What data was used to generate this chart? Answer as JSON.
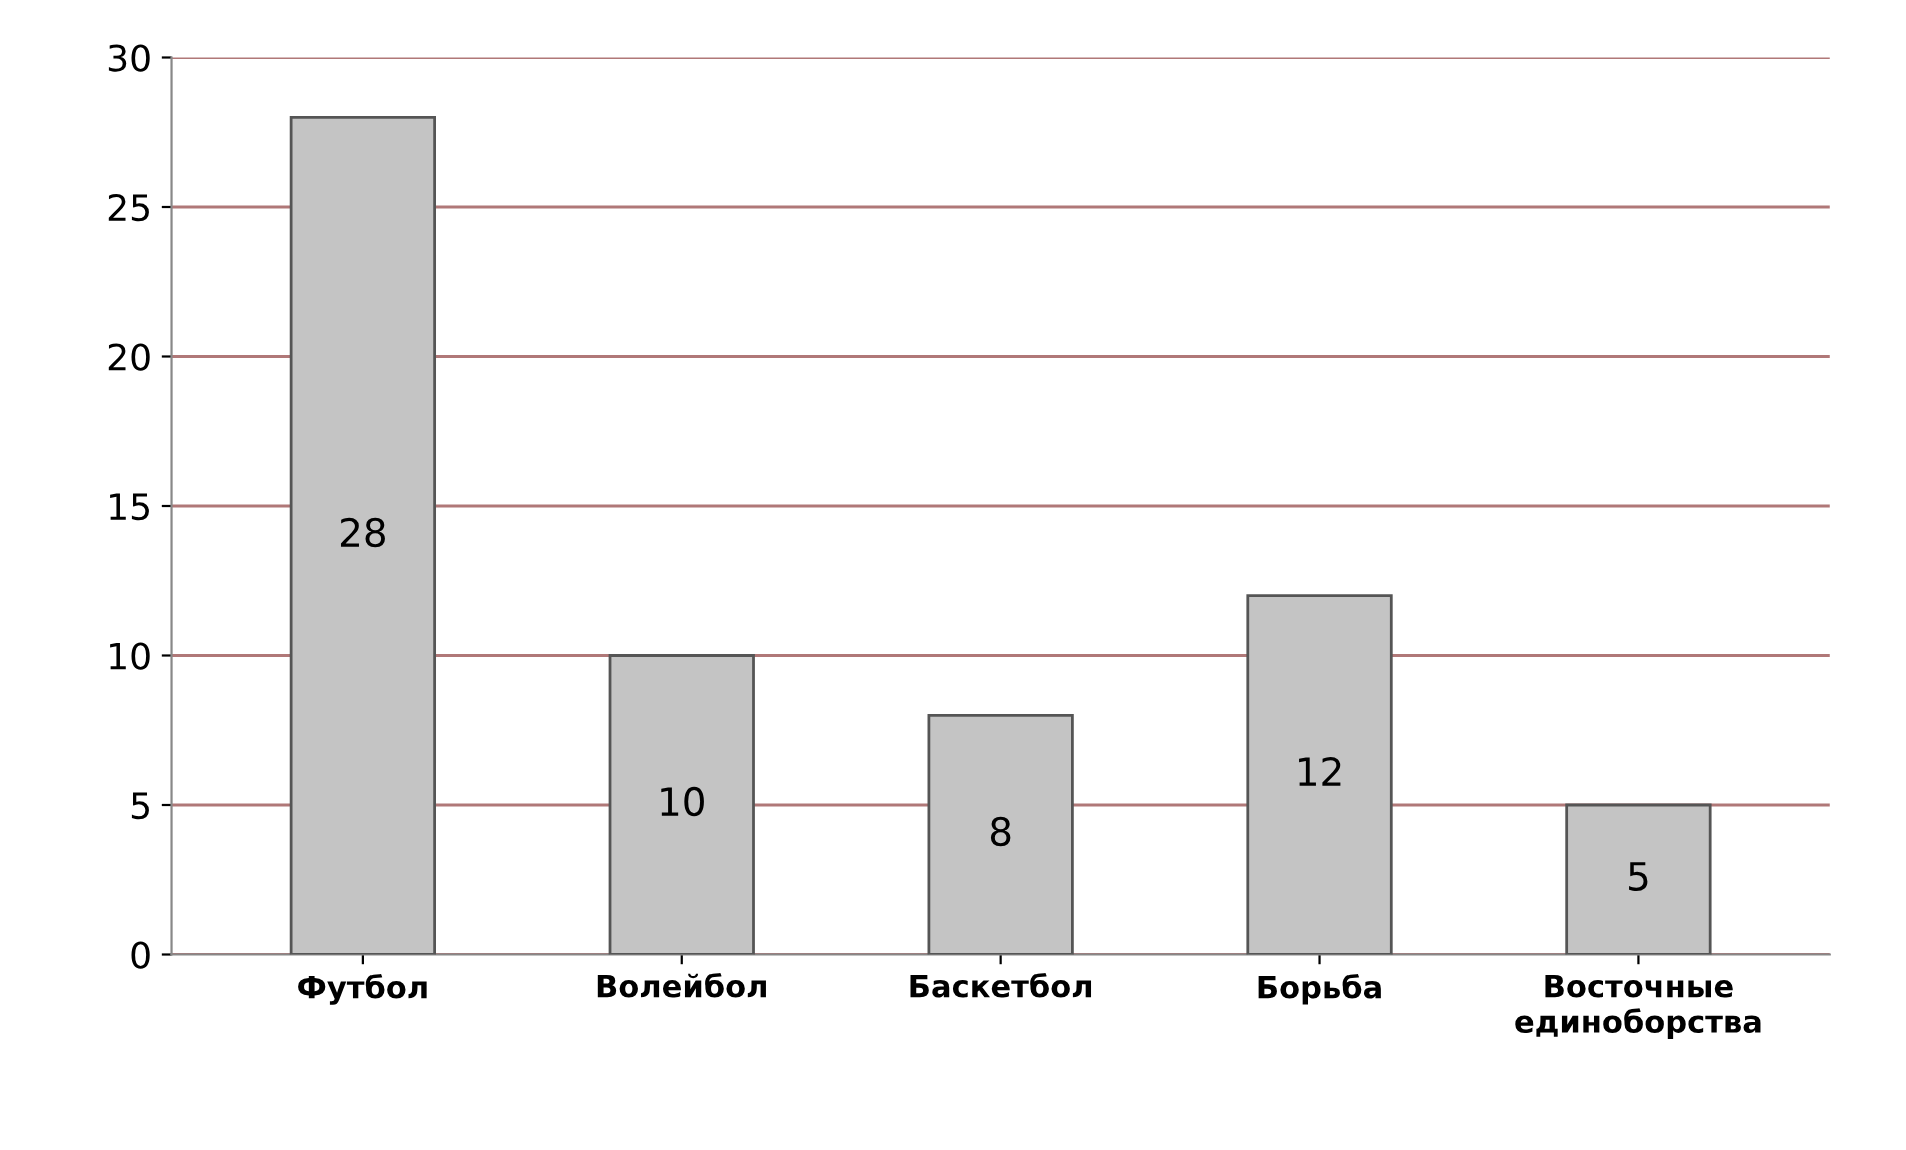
{
  "chart_data": {
    "type": "bar",
    "categories": [
      "Футбол",
      "Волейбол",
      "Баскетбол",
      "Борьба",
      "Восточные\nединоборства"
    ],
    "values": [
      28,
      10,
      8,
      12,
      5
    ],
    "color": "#c4c4c4",
    "ylim": [
      0,
      30
    ],
    "yticks": [
      0,
      5,
      10,
      15,
      20,
      25,
      30
    ],
    "grid": "y",
    "data_labels": true
  }
}
